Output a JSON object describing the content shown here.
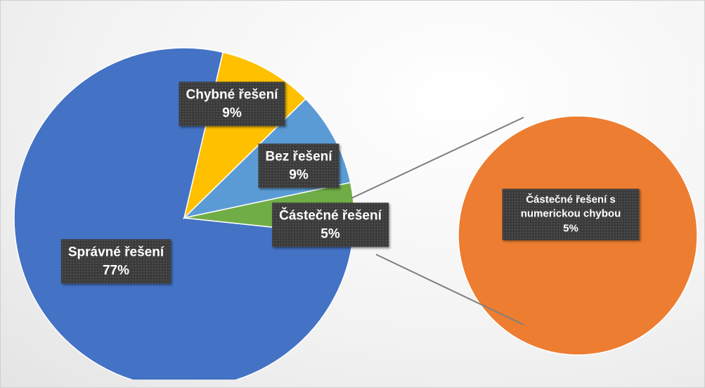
{
  "chart_data": {
    "type": "pie",
    "categories": [
      "Správné řešení",
      "Chybné řešení",
      "Bez řešení",
      "Částečné řešení"
    ],
    "values": [
      77,
      9,
      9,
      5
    ],
    "value_labels": [
      "77%",
      "9%",
      "9%",
      "5%"
    ],
    "colors": [
      "#4472c4",
      "#ffc000",
      "#5b9bd5",
      "#70ad47"
    ],
    "secondary": {
      "categories": [
        "Částečné řešení s numerickou chybou"
      ],
      "values": [
        5
      ],
      "value_labels": [
        "5%"
      ],
      "colors": [
        "#ed7d31"
      ]
    }
  }
}
